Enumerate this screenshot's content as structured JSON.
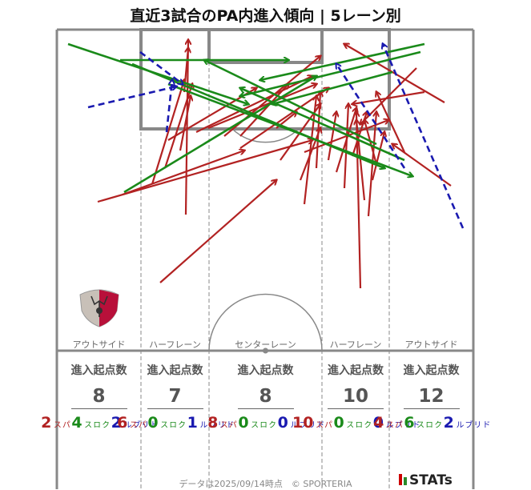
{
  "title": "直近3試合のPA内進入傾向 | 5レーン別",
  "lanes": [
    {
      "name": "アウトサイド",
      "head": "進入起点数",
      "total": "8",
      "breakdown": [
        {
          "n": "2",
          "label": "パス",
          "kind": "pass"
        },
        {
          "n": "4",
          "label": "クロス",
          "kind": "cross"
        },
        {
          "n": "2",
          "label": "ドリブル",
          "kind": "dribble"
        }
      ]
    },
    {
      "name": "ハーフレーン",
      "head": "進入起点数",
      "total": "7",
      "breakdown": [
        {
          "n": "6",
          "label": "パス",
          "kind": "pass"
        },
        {
          "n": "0",
          "label": "クロス",
          "kind": "cross"
        },
        {
          "n": "1",
          "label": "ドリブル",
          "kind": "dribble"
        }
      ]
    },
    {
      "name": "センターレーン",
      "head": "進入起点数",
      "total": "8",
      "breakdown": [
        {
          "n": "8",
          "label": "パス",
          "kind": "pass"
        },
        {
          "n": "0",
          "label": "クロス",
          "kind": "cross"
        },
        {
          "n": "0",
          "label": "ドリブル",
          "kind": "dribble"
        }
      ]
    },
    {
      "name": "ハーフレーン",
      "head": "進入起点数",
      "total": "10",
      "breakdown": [
        {
          "n": "10",
          "label": "パス",
          "kind": "pass"
        },
        {
          "n": "0",
          "label": "クロス",
          "kind": "cross"
        },
        {
          "n": "0",
          "label": "ドリブル",
          "kind": "dribble"
        }
      ]
    },
    {
      "name": "アウトサイド",
      "head": "進入起点数",
      "total": "12",
      "breakdown": [
        {
          "n": "4",
          "label": "パス",
          "kind": "pass"
        },
        {
          "n": "6",
          "label": "クロス",
          "kind": "cross"
        },
        {
          "n": "2",
          "label": "ドリブル",
          "kind": "dribble"
        }
      ]
    }
  ],
  "footer": "データは2025/09/14時点　© SPORTERIA",
  "brand": "STATs",
  "colors": {
    "pass": "#b22222",
    "cross": "#1a8a1a",
    "dribble": "#1a1ab0",
    "pitch_line": "#888888"
  },
  "logo_icon": "team-crest-icon"
}
